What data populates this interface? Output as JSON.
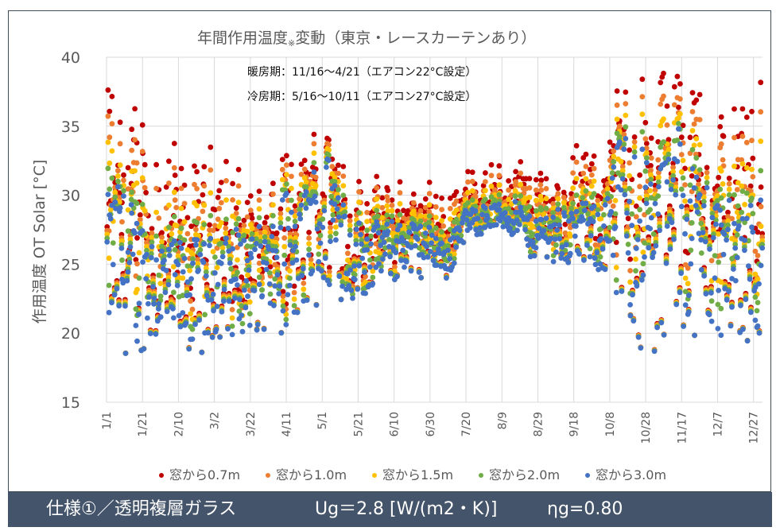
{
  "footer": {
    "spec": "仕様①／透明複層ガラス",
    "ug": "Ug＝2.8 [W/(m2・K)]",
    "eta": "ηg=0.80"
  },
  "chart_data": {
    "type": "scatter",
    "title": "年間作用温度",
    "title_mark": "※",
    "title_suffix": "変動（東京・レースカーテンあり）",
    "annotations": [
      "暖房期：11/16～4/21（エアコン22°C設定）",
      "冷房期：5/16～10/11（エアコン27°C設定）"
    ],
    "xlabel": "",
    "ylabel": "作用温度 OT  Solar [°C]",
    "ylim": [
      15,
      40
    ],
    "yticks": [
      15,
      20,
      25,
      30,
      35,
      40
    ],
    "xlim_days": [
      0,
      365
    ],
    "xticks": [
      {
        "day": 0,
        "label": "1/1"
      },
      {
        "day": 20,
        "label": "1/21"
      },
      {
        "day": 40,
        "label": "2/10"
      },
      {
        "day": 60,
        "label": "3/2"
      },
      {
        "day": 80,
        "label": "3/22"
      },
      {
        "day": 100,
        "label": "4/11"
      },
      {
        "day": 120,
        "label": "5/1"
      },
      {
        "day": 140,
        "label": "5/21"
      },
      {
        "day": 160,
        "label": "6/10"
      },
      {
        "day": 180,
        "label": "6/30"
      },
      {
        "day": 200,
        "label": "7/20"
      },
      {
        "day": 220,
        "label": "8/9"
      },
      {
        "day": 240,
        "label": "8/29"
      },
      {
        "day": 260,
        "label": "9/18"
      },
      {
        "day": 280,
        "label": "10/8"
      },
      {
        "day": 300,
        "label": "10/28"
      },
      {
        "day": 320,
        "label": "11/17"
      },
      {
        "day": 340,
        "label": "12/7"
      },
      {
        "day": 360,
        "label": "12/27"
      }
    ],
    "grid": true,
    "legend_position": "bottom",
    "series": [
      {
        "name": "窓から0.7m",
        "color": "#c00000",
        "offset": 1.6
      },
      {
        "name": "窓から1.0m",
        "color": "#ed7d31",
        "offset": 1.2
      },
      {
        "name": "窓から1.5m",
        "color": "#ffc000",
        "offset": 0.8
      },
      {
        "name": "窓から2.0m",
        "color": "#70ad47",
        "offset": 0.4
      },
      {
        "name": "窓から3.0m",
        "color": "#4472c4",
        "offset": 0.0
      }
    ],
    "envelope_note": "approximate daily range of 窓から3.0m series (min, max) and daytime solar peak of 窓から0.7m series, sampled every 5 days",
    "envelope": [
      {
        "day": 0,
        "min": 19.3,
        "max": 30.0,
        "peak": 39.0
      },
      {
        "day": 5,
        "min": 19.0,
        "max": 31.0,
        "peak": 37.8
      },
      {
        "day": 10,
        "min": 18.5,
        "max": 30.5,
        "peak": 37.5
      },
      {
        "day": 15,
        "min": 17.8,
        "max": 29.5,
        "peak": 37.2
      },
      {
        "day": 20,
        "min": 18.8,
        "max": 29.0,
        "peak": 37.0
      },
      {
        "day": 25,
        "min": 18.5,
        "max": 28.0,
        "peak": 36.8
      },
      {
        "day": 30,
        "min": 18.6,
        "max": 27.5,
        "peak": 35.0
      },
      {
        "day": 35,
        "min": 18.2,
        "max": 26.5,
        "peak": 34.5
      },
      {
        "day": 40,
        "min": 18.5,
        "max": 27.0,
        "peak": 33.0
      },
      {
        "day": 45,
        "min": 18.4,
        "max": 26.5,
        "peak": 30.5
      },
      {
        "day": 50,
        "min": 18.3,
        "max": 27.0,
        "peak": 32.0
      },
      {
        "day": 55,
        "min": 18.8,
        "max": 26.5,
        "peak": 33.0
      },
      {
        "day": 60,
        "min": 19.2,
        "max": 27.5,
        "peak": 33.8
      },
      {
        "day": 65,
        "min": 19.8,
        "max": 27.0,
        "peak": 32.5
      },
      {
        "day": 70,
        "min": 19.5,
        "max": 28.0,
        "peak": 32.0
      },
      {
        "day": 75,
        "min": 20.0,
        "max": 27.5,
        "peak": 30.5
      },
      {
        "day": 80,
        "min": 20.3,
        "max": 27.0,
        "peak": 30.5
      },
      {
        "day": 85,
        "min": 19.8,
        "max": 28.0,
        "peak": 29.5
      },
      {
        "day": 90,
        "min": 20.2,
        "max": 27.5,
        "peak": 30.5
      },
      {
        "day": 95,
        "min": 20.8,
        "max": 28.0,
        "peak": 29.0
      },
      {
        "day": 100,
        "min": 18.5,
        "max": 31.5,
        "peak": 33.5
      },
      {
        "day": 105,
        "min": 20.5,
        "max": 28.0,
        "peak": 30.5
      },
      {
        "day": 110,
        "min": 21.0,
        "max": 31.0,
        "peak": 32.5
      },
      {
        "day": 115,
        "min": 22.0,
        "max": 32.5,
        "peak": 34.0
      },
      {
        "day": 120,
        "min": 21.5,
        "max": 33.0,
        "peak": 35.3
      },
      {
        "day": 125,
        "min": 23.0,
        "max": 33.5,
        "peak": 34.5
      },
      {
        "day": 130,
        "min": 22.5,
        "max": 33.0,
        "peak": 35.0
      },
      {
        "day": 135,
        "min": 21.8,
        "max": 28.0,
        "peak": 29.5
      },
      {
        "day": 140,
        "min": 23.0,
        "max": 28.3,
        "peak": 30.2
      },
      {
        "day": 145,
        "min": 22.5,
        "max": 28.0,
        "peak": 30.0
      },
      {
        "day": 150,
        "min": 23.5,
        "max": 28.2,
        "peak": 30.0
      },
      {
        "day": 155,
        "min": 24.0,
        "max": 28.0,
        "peak": 29.8
      },
      {
        "day": 160,
        "min": 23.5,
        "max": 28.3,
        "peak": 30.0
      },
      {
        "day": 165,
        "min": 24.5,
        "max": 28.0,
        "peak": 30.2
      },
      {
        "day": 170,
        "min": 23.8,
        "max": 28.2,
        "peak": 30.0
      },
      {
        "day": 175,
        "min": 24.0,
        "max": 28.0,
        "peak": 29.5
      },
      {
        "day": 180,
        "min": 25.0,
        "max": 27.8,
        "peak": 29.8
      },
      {
        "day": 185,
        "min": 24.5,
        "max": 27.0,
        "peak": 29.0
      },
      {
        "day": 190,
        "min": 23.5,
        "max": 26.5,
        "peak": 28.5
      },
      {
        "day": 195,
        "min": 26.0,
        "max": 28.5,
        "peak": 30.5
      },
      {
        "day": 200,
        "min": 26.8,
        "max": 29.0,
        "peak": 30.8
      },
      {
        "day": 205,
        "min": 27.0,
        "max": 29.2,
        "peak": 31.0
      },
      {
        "day": 210,
        "min": 27.2,
        "max": 29.3,
        "peak": 31.0
      },
      {
        "day": 215,
        "min": 27.5,
        "max": 29.4,
        "peak": 31.2
      },
      {
        "day": 220,
        "min": 27.5,
        "max": 29.4,
        "peak": 31.0
      },
      {
        "day": 225,
        "min": 27.0,
        "max": 29.5,
        "peak": 31.5
      },
      {
        "day": 230,
        "min": 26.5,
        "max": 29.6,
        "peak": 31.8
      },
      {
        "day": 235,
        "min": 25.5,
        "max": 28.5,
        "peak": 30.5
      },
      {
        "day": 240,
        "min": 25.0,
        "max": 28.8,
        "peak": 31.0
      },
      {
        "day": 245,
        "min": 25.5,
        "max": 29.0,
        "peak": 31.2
      },
      {
        "day": 250,
        "min": 25.0,
        "max": 29.2,
        "peak": 31.5
      },
      {
        "day": 255,
        "min": 24.5,
        "max": 29.0,
        "peak": 32.0
      },
      {
        "day": 260,
        "min": 25.5,
        "max": 29.2,
        "peak": 32.8
      },
      {
        "day": 265,
        "min": 24.5,
        "max": 29.5,
        "peak": 33.0
      },
      {
        "day": 270,
        "min": 25.0,
        "max": 29.3,
        "peak": 31.5
      },
      {
        "day": 275,
        "min": 24.0,
        "max": 29.5,
        "peak": 32.0
      },
      {
        "day": 280,
        "min": 23.5,
        "max": 31.0,
        "peak": 35.5
      },
      {
        "day": 285,
        "min": 20.0,
        "max": 34.5,
        "peak": 38.5
      },
      {
        "day": 290,
        "min": 22.0,
        "max": 35.0,
        "peak": 38.0
      },
      {
        "day": 295,
        "min": 17.8,
        "max": 34.0,
        "peak": 38.2
      },
      {
        "day": 300,
        "min": 19.5,
        "max": 34.5,
        "peak": 38.0
      },
      {
        "day": 305,
        "min": 17.5,
        "max": 32.0,
        "peak": 38.8
      },
      {
        "day": 310,
        "min": 19.5,
        "max": 34.0,
        "peak": 39.5
      },
      {
        "day": 315,
        "min": 20.5,
        "max": 34.5,
        "peak": 40.0
      },
      {
        "day": 320,
        "min": 19.5,
        "max": 35.5,
        "peak": 39.8
      },
      {
        "day": 325,
        "min": 20.0,
        "max": 33.5,
        "peak": 39.0
      },
      {
        "day": 330,
        "min": 19.5,
        "max": 32.0,
        "peak": 38.8
      },
      {
        "day": 335,
        "min": 19.8,
        "max": 31.5,
        "peak": 38.5
      },
      {
        "day": 340,
        "min": 19.0,
        "max": 30.5,
        "peak": 38.5
      },
      {
        "day": 345,
        "min": 20.5,
        "max": 29.5,
        "peak": 37.0
      },
      {
        "day": 350,
        "min": 19.0,
        "max": 30.0,
        "peak": 37.5
      },
      {
        "day": 355,
        "min": 19.5,
        "max": 31.0,
        "peak": 37.5
      },
      {
        "day": 360,
        "min": 18.8,
        "max": 30.5,
        "peak": 38.0
      },
      {
        "day": 365,
        "min": 19.0,
        "max": 30.0,
        "peak": 37.8
      }
    ]
  }
}
